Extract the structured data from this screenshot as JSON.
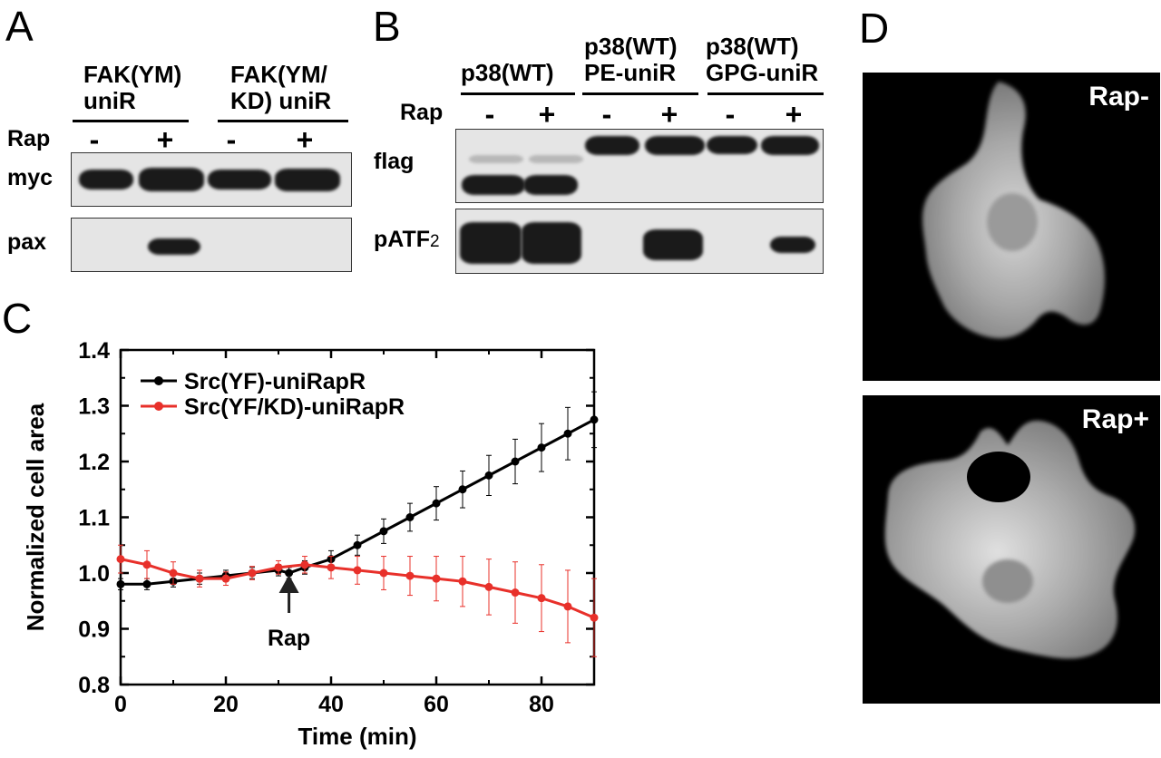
{
  "panels": {
    "a": {
      "letter": "A",
      "groups": [
        "FAK(YM)\nuniR",
        "FAK(YM/\nKD) uniR"
      ],
      "row_label": "Rap",
      "signs": [
        "-",
        "+",
        "-",
        "+"
      ],
      "blots": [
        "myc",
        "pax"
      ]
    },
    "b": {
      "letter": "B",
      "groups": [
        "p38(WT)",
        "p38(WT)\nPE-uniR",
        "p38(WT)\nGPG-uniR"
      ],
      "row_label": "Rap",
      "signs": [
        "-",
        "+",
        "-",
        "+",
        "-",
        "+"
      ],
      "blots": [
        "flag",
        "pATF",
        "2"
      ]
    },
    "c": {
      "letter": "C"
    },
    "d": {
      "letter": "D",
      "labels": [
        "Rap-",
        "Rap+"
      ]
    }
  },
  "chart_data": {
    "type": "line",
    "xlabel": "Time (min)",
    "ylabel": "Normalized cell area",
    "xlim": [
      0,
      90
    ],
    "ylim": [
      0.8,
      1.4
    ],
    "xticks": [
      0,
      20,
      40,
      60,
      80
    ],
    "yticks": [
      0.8,
      0.9,
      1.0,
      1.1,
      1.2,
      1.3,
      1.4
    ],
    "xtick_labels": [
      "0",
      "20",
      "40",
      "60",
      "80"
    ],
    "ytick_labels": [
      "0.8",
      "0.9",
      "1.0",
      "1.1",
      "1.2",
      "1.3",
      "1.4"
    ],
    "legend_position": "top-left",
    "annotation": {
      "text": "Rap",
      "x": 32,
      "y": 1.0
    },
    "series": [
      {
        "name": "Src(YF)-uniRapR",
        "color": "#000000",
        "x": [
          0,
          5,
          10,
          15,
          20,
          25,
          30,
          32,
          35,
          40,
          45,
          50,
          55,
          60,
          65,
          70,
          75,
          80,
          85,
          90
        ],
        "y": [
          0.98,
          0.98,
          0.985,
          0.99,
          0.995,
          1.0,
          1.005,
          1.0,
          1.01,
          1.025,
          1.05,
          1.075,
          1.1,
          1.125,
          1.15,
          1.175,
          1.2,
          1.225,
          1.25,
          1.275
        ],
        "err": [
          0.01,
          0.01,
          0.01,
          0.01,
          0.01,
          0.01,
          0.01,
          0.01,
          0.012,
          0.015,
          0.018,
          0.022,
          0.025,
          0.03,
          0.033,
          0.036,
          0.04,
          0.043,
          0.047,
          0.05
        ]
      },
      {
        "name": "Src(YF/KD)-uniRapR",
        "color": "#e8302a",
        "x": [
          0,
          5,
          10,
          15,
          20,
          25,
          30,
          35,
          40,
          45,
          50,
          55,
          60,
          65,
          70,
          75,
          80,
          85,
          90
        ],
        "y": [
          1.025,
          1.015,
          1.0,
          0.99,
          0.99,
          1.0,
          1.01,
          1.015,
          1.01,
          1.005,
          1.0,
          0.995,
          0.99,
          0.985,
          0.975,
          0.965,
          0.955,
          0.94,
          0.92
        ],
        "err": [
          0.025,
          0.025,
          0.02,
          0.015,
          0.012,
          0.012,
          0.012,
          0.015,
          0.02,
          0.025,
          0.03,
          0.035,
          0.04,
          0.045,
          0.05,
          0.055,
          0.06,
          0.065,
          0.07
        ]
      }
    ]
  }
}
